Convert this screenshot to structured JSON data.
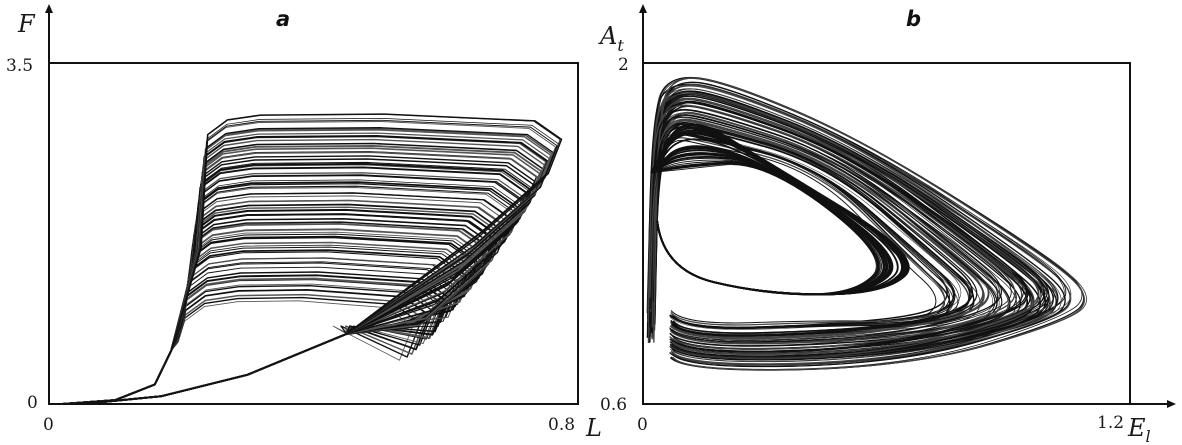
{
  "chart_data": [
    {
      "type": "line",
      "panel_label": "a",
      "xlabel": "L",
      "ylabel": "F",
      "xlim": [
        0,
        0.8
      ],
      "ylim": [
        0,
        3.5
      ],
      "x_ticks": [
        "0",
        "0.8"
      ],
      "y_ticks": [
        "0",
        "3.5"
      ],
      "grid": false,
      "series": [
        {
          "description_points": [
            [
              0.02,
              0.0
            ],
            [
              0.08,
              0.03
            ],
            [
              0.14,
              0.12
            ],
            [
              0.16,
              0.25
            ],
            [
              0.18,
              0.55
            ],
            [
              0.2,
              1.3
            ],
            [
              0.22,
              2.1
            ],
            [
              0.24,
              2.6
            ],
            [
              0.27,
              2.85
            ],
            [
              0.35,
              2.97
            ],
            [
              0.5,
              2.98
            ],
            [
              0.65,
              2.92
            ],
            [
              0.74,
              2.85
            ],
            [
              0.77,
              2.7
            ],
            [
              0.75,
              2.4
            ],
            [
              0.7,
              1.95
            ],
            [
              0.62,
              1.45
            ],
            [
              0.55,
              1.1
            ],
            [
              0.45,
              0.72
            ],
            [
              0.35,
              0.42
            ],
            [
              0.25,
              0.2
            ],
            [
              0.17,
              0.08
            ],
            [
              0.08,
              0.01
            ]
          ]
        }
      ]
    },
    {
      "type": "line",
      "panel_label": "b",
      "xlabel": "E",
      "xlabel_sub": "l",
      "ylabel": "A",
      "ylabel_sub": "t",
      "xlim": [
        0,
        1.2
      ],
      "ylim": [
        0.6,
        2
      ],
      "x_ticks": [
        "0",
        "1.2"
      ],
      "y_ticks": [
        "0.6",
        "2"
      ],
      "grid": false
    }
  ]
}
